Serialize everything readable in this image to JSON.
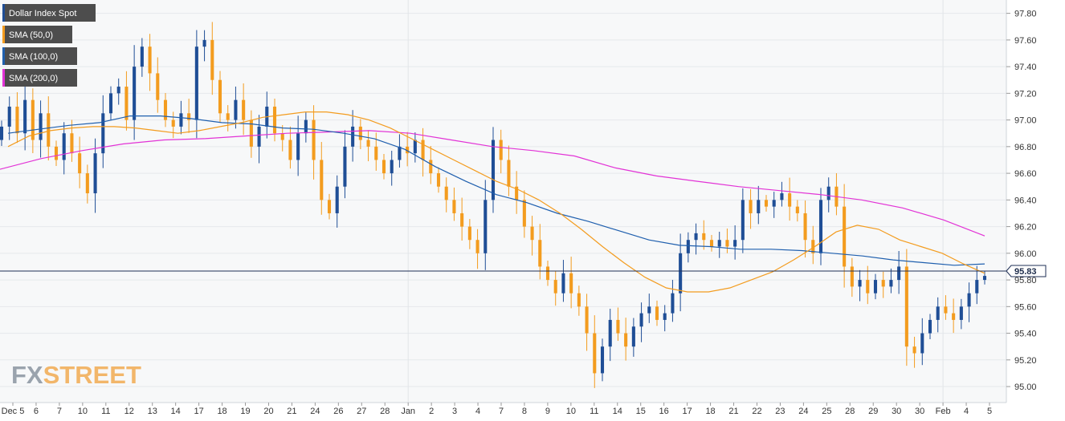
{
  "chart_data": {
    "type": "candlestick",
    "title": "",
    "instrument": "Dollar Index Spot",
    "current_price": "95.83",
    "ylim": [
      94.88,
      97.9
    ],
    "y_ticks": [
      "97.80",
      "97.60",
      "97.40",
      "97.20",
      "97.00",
      "96.80",
      "96.60",
      "96.40",
      "96.20",
      "96.00",
      "95.80",
      "95.60",
      "95.40",
      "95.20",
      "95.00"
    ],
    "x_ticks": [
      "Dec 5",
      "6",
      "7",
      "10",
      "11",
      "12",
      "13",
      "14",
      "17",
      "18",
      "19",
      "20",
      "21",
      "24",
      "26",
      "27",
      "28",
      "Jan",
      "2",
      "3",
      "4",
      "7",
      "8",
      "9",
      "10",
      "11",
      "14",
      "15",
      "16",
      "17",
      "18",
      "21",
      "22",
      "23",
      "24",
      "25",
      "28",
      "29",
      "30",
      "30",
      "Feb",
      "4",
      "5"
    ],
    "legend": [
      {
        "label": "Dollar Index Spot",
        "color": "#1f4e96"
      },
      {
        "label": "SMA (50,0)",
        "color": "#f39c1f"
      },
      {
        "label": "SMA (100,0)",
        "color": "#1f5fae"
      },
      {
        "label": "SMA (200,0)",
        "color": "#e233d6"
      }
    ],
    "colors": {
      "bull": "#1f4e96",
      "bear": "#f39c1f"
    },
    "closes": [
      96.95,
      97.1,
      96.9,
      97.15,
      96.85,
      97.05,
      96.8,
      96.7,
      96.9,
      96.75,
      96.6,
      96.45,
      96.75,
      97.05,
      97.2,
      97.25,
      97.0,
      97.4,
      97.55,
      97.35,
      97.15,
      97.0,
      96.95,
      97.05,
      97.0,
      97.55,
      97.6,
      97.3,
      97.05,
      97.0,
      97.15,
      97.0,
      96.8,
      96.95,
      97.1,
      96.9,
      96.85,
      96.7,
      96.9,
      97.0,
      96.7,
      96.4,
      96.3,
      96.5,
      96.8,
      96.95,
      96.85,
      96.8,
      96.7,
      96.6,
      96.7,
      96.8,
      96.75,
      96.85,
      96.7,
      96.6,
      96.5,
      96.4,
      96.3,
      96.2,
      96.1,
      96.0,
      96.4,
      96.85,
      96.7,
      96.5,
      96.4,
      96.2,
      96.1,
      95.9,
      95.8,
      95.7,
      95.85,
      95.7,
      95.6,
      95.4,
      95.1,
      95.3,
      95.5,
      95.4,
      95.3,
      95.45,
      95.55,
      95.6,
      95.5,
      95.55,
      95.7,
      96.0,
      96.1,
      96.15,
      96.1,
      96.05,
      96.1,
      96.05,
      96.1,
      96.4,
      96.3,
      96.4,
      96.35,
      96.4,
      96.45,
      96.35,
      96.3,
      96.1,
      96.0,
      96.4,
      96.5,
      96.35,
      95.9,
      95.75,
      95.8,
      95.7,
      95.8,
      95.75,
      95.8,
      95.9,
      95.3,
      95.25,
      95.4,
      95.5,
      95.6,
      95.55,
      95.5,
      95.6,
      95.7,
      95.8,
      95.83
    ],
    "sma50": [
      96.8,
      96.88,
      96.92,
      96.94,
      96.95,
      96.95,
      96.94,
      96.92,
      96.9,
      96.92,
      96.95,
      96.98,
      97.02,
      97.04,
      97.06,
      97.06,
      97.04,
      97.0,
      96.94,
      96.86,
      96.78,
      96.7,
      96.62,
      96.54,
      96.48,
      96.4,
      96.3,
      96.18,
      96.05,
      95.93,
      95.82,
      95.74,
      95.71,
      95.71,
      95.74,
      95.8,
      95.86,
      95.95,
      96.05,
      96.16,
      96.21,
      96.18,
      96.1,
      96.05,
      96.0,
      95.92,
      95.85
    ],
    "sma100": [
      96.9,
      96.93,
      96.96,
      96.98,
      97.03,
      97.03,
      97.01,
      96.98,
      96.97,
      96.94,
      96.93,
      96.9,
      96.86,
      96.78,
      96.65,
      96.54,
      96.44,
      96.38,
      96.3,
      96.24,
      96.17,
      96.1,
      96.06,
      96.05,
      96.03,
      96.03,
      96.02,
      96.0,
      95.98,
      95.95,
      95.93,
      95.91,
      95.92
    ],
    "sma200": [
      96.63,
      96.71,
      96.77,
      96.82,
      96.85,
      96.86,
      96.88,
      96.9,
      96.91,
      96.92,
      96.9,
      96.85,
      96.8,
      96.77,
      96.73,
      96.64,
      96.58,
      96.54,
      96.5,
      96.47,
      96.44,
      96.4,
      96.34,
      96.25,
      96.13
    ]
  },
  "watermark": {
    "part1": "FX",
    "part2": "STREET"
  }
}
